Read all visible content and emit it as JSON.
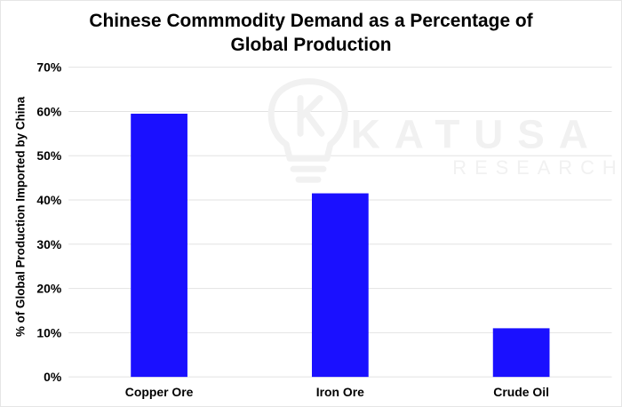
{
  "chart_data": {
    "type": "bar",
    "title_line1": "Chinese Commmodity Demand as a Percentage of",
    "title_line2": "Global Production",
    "ylabel": "% of Global Production Imported by China",
    "xlabel": "",
    "categories": [
      "Copper Ore",
      "Iron Ore",
      "Crude Oil"
    ],
    "values": [
      59.5,
      41.5,
      11
    ],
    "ylim": [
      0,
      70
    ],
    "yticks": [
      {
        "value": 0,
        "label": "0%"
      },
      {
        "value": 10,
        "label": "10%"
      },
      {
        "value": 20,
        "label": "20%"
      },
      {
        "value": 30,
        "label": "30%"
      },
      {
        "value": 40,
        "label": "40%"
      },
      {
        "value": 50,
        "label": "50%"
      },
      {
        "value": 60,
        "label": "60%"
      },
      {
        "value": 70,
        "label": "70%"
      }
    ],
    "grid": true,
    "legend": "none",
    "bar_color": "#1a10ff",
    "grid_color": "#e2e2e2"
  },
  "watermark": {
    "line1": "KATUSA",
    "line2": "RESEARCH",
    "icon": "lightbulb-k-icon"
  }
}
